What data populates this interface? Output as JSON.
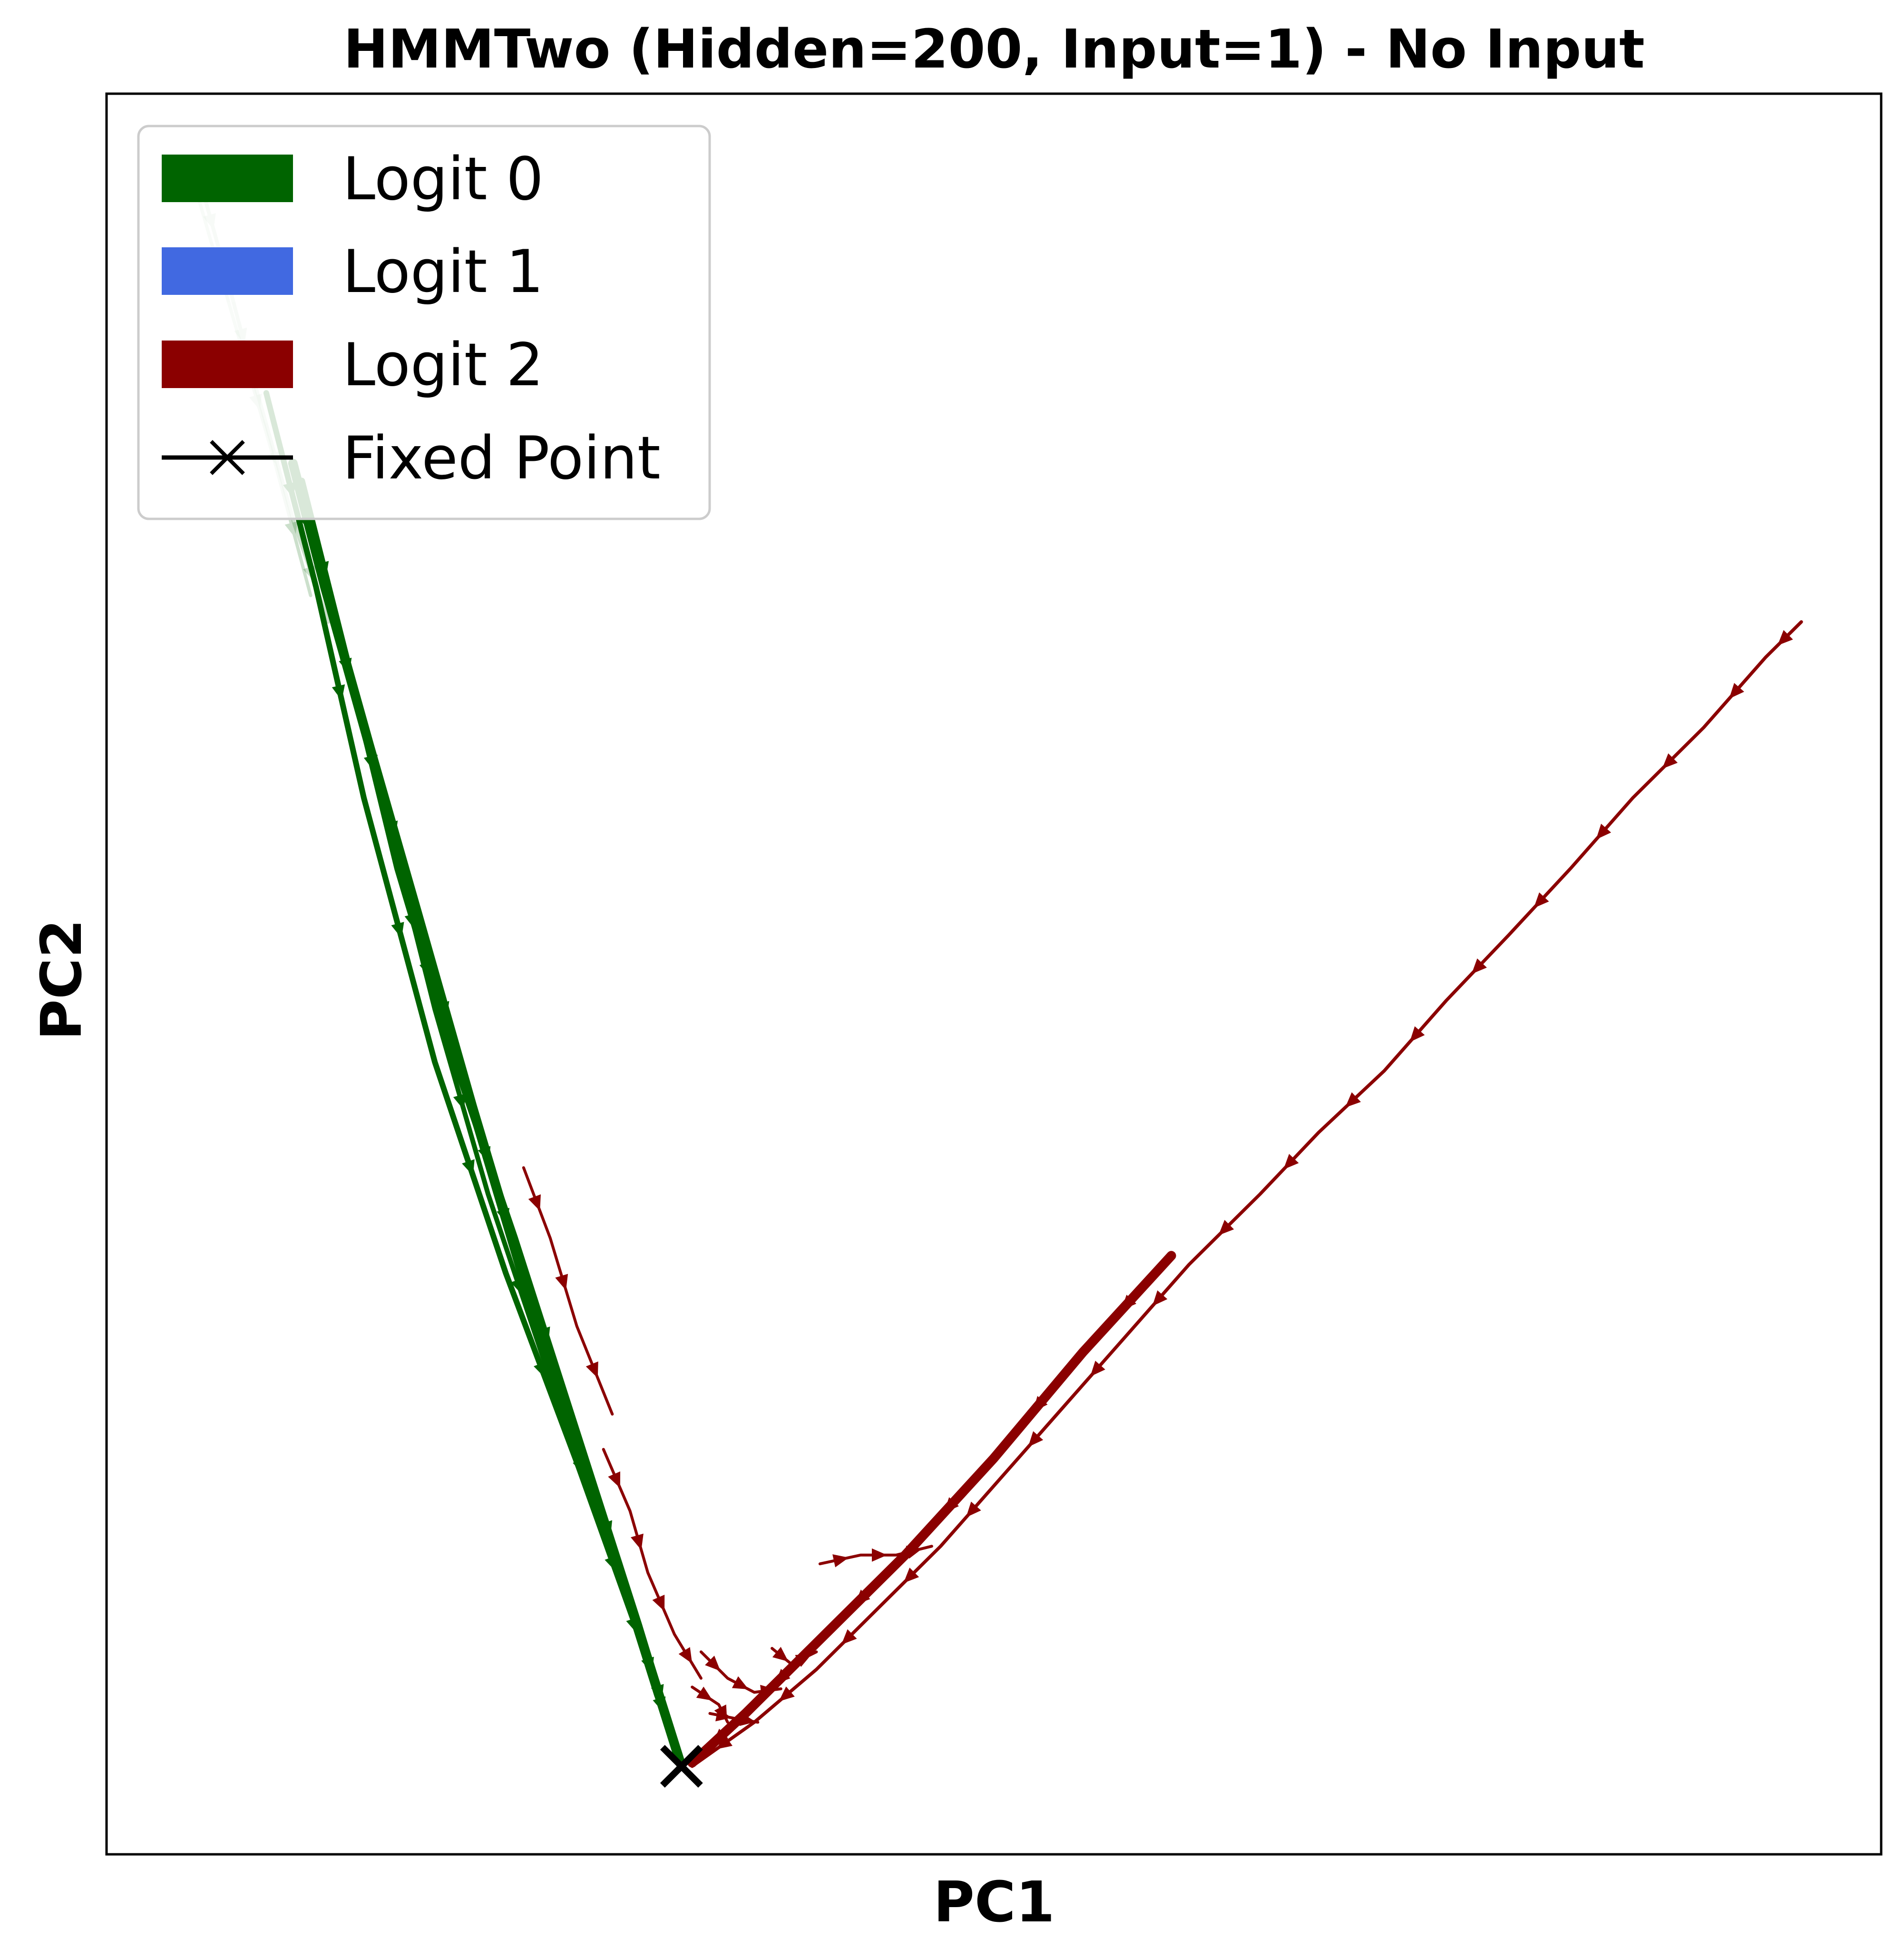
{
  "chart_data": {
    "type": "line",
    "title": "HMMTwo (Hidden=200, Input=1) - No Input",
    "xlabel": "PC1",
    "ylabel": "PC2",
    "xticks_visible": false,
    "yticks_visible": false,
    "grid": false,
    "legend_position": "upper-left",
    "xlim": [
      0,
      100
    ],
    "ylim": [
      0,
      100
    ],
    "legend": [
      {
        "label": "Logit 0",
        "color": "#006400",
        "style": "patch"
      },
      {
        "label": "Logit 1",
        "color": "#4169E1",
        "style": "patch"
      },
      {
        "label": "Logit 2",
        "color": "#8B0000",
        "style": "patch"
      },
      {
        "label": "Fixed Point",
        "color": "#000000",
        "style": "line-x"
      }
    ],
    "fixed_point": {
      "x": 32.4,
      "y": 5.0
    },
    "series": [
      {
        "logit": 0,
        "color": "#006400",
        "width": 20,
        "opacity": 1,
        "points": [
          [
            10.5,
            79.0
          ],
          [
            12.3,
            72.0
          ],
          [
            14.8,
            63.0
          ],
          [
            17.5,
            53.5
          ],
          [
            20.6,
            42.5
          ],
          [
            24.3,
            30.0
          ],
          [
            28.8,
            16.5
          ],
          [
            32.4,
            5.0
          ]
        ]
      },
      {
        "logit": 0,
        "color": "#006400",
        "width": 12,
        "opacity": 1,
        "points": [
          [
            9.0,
            83.0
          ],
          [
            11.8,
            72.0
          ],
          [
            14.5,
            60.0
          ],
          [
            18.5,
            45.0
          ],
          [
            22.5,
            33.0
          ],
          [
            26.6,
            22.0
          ],
          [
            30.5,
            11.0
          ],
          [
            32.0,
            6.0
          ]
        ]
      },
      {
        "logit": 0,
        "color": "#006400",
        "width": 14,
        "opacity": 1,
        "points": [
          [
            11.0,
            78.0
          ],
          [
            13.5,
            68.0
          ],
          [
            16.4,
            56.0
          ],
          [
            19.8,
            44.5
          ],
          [
            23.0,
            35.0
          ],
          [
            26.5,
            24.0
          ],
          [
            30.0,
            13.0
          ],
          [
            32.3,
            5.4
          ]
        ]
      },
      {
        "logit": 0,
        "color": "#006400",
        "width": 10,
        "opacity": 1,
        "points": [
          [
            14.0,
            66.0
          ],
          [
            16.0,
            58.0
          ],
          [
            18.5,
            48.0
          ],
          [
            21.5,
            37.5
          ],
          [
            25.0,
            27.0
          ],
          [
            28.5,
            17.0
          ],
          [
            31.0,
            9.0
          ]
        ]
      },
      {
        "logit": 0,
        "color": "#006400",
        "width": 8,
        "opacity": 0.2,
        "points": [
          [
            5.0,
            96.0
          ],
          [
            6.8,
            89.5
          ],
          [
            8.5,
            83.0
          ],
          [
            10.6,
            75.5
          ],
          [
            12.5,
            70.0
          ]
        ]
      },
      {
        "logit": 0,
        "color": "#006400",
        "width": 7,
        "opacity": 0.2,
        "points": [
          [
            5.2,
            94.0
          ],
          [
            7.5,
            86.0
          ],
          [
            9.5,
            79.0
          ],
          [
            11.5,
            71.5
          ]
        ]
      },
      {
        "logit": 2,
        "color": "#8B0000",
        "width": 7,
        "opacity": 1,
        "points": [
          [
            95.5,
            70.0
          ],
          [
            93.5,
            68.0
          ],
          [
            90.0,
            64.0
          ],
          [
            86.0,
            60.0
          ],
          [
            82.5,
            56.0
          ],
          [
            79.0,
            52.2
          ],
          [
            75.5,
            48.5
          ],
          [
            72.0,
            44.5
          ],
          [
            68.3,
            41.0
          ],
          [
            65.0,
            37.5
          ],
          [
            61.0,
            33.5
          ],
          [
            57.5,
            29.5
          ],
          [
            54.0,
            25.5
          ],
          [
            50.5,
            21.5
          ],
          [
            47.0,
            17.5
          ],
          [
            43.5,
            14.0
          ],
          [
            40.0,
            10.5
          ],
          [
            36.5,
            7.5
          ],
          [
            33.0,
            5.0
          ]
        ]
      },
      {
        "logit": 2,
        "color": "#8B0000",
        "width": 20,
        "opacity": 1,
        "points": [
          [
            60.0,
            34.0
          ],
          [
            55.0,
            28.5
          ],
          [
            50.0,
            22.5
          ],
          [
            45.0,
            17.0
          ],
          [
            40.0,
            12.0
          ],
          [
            36.0,
            8.0
          ],
          [
            33.0,
            5.2
          ]
        ]
      },
      {
        "logit": 2,
        "color": "#8B0000",
        "width": 6,
        "opacity": 1,
        "points": [
          [
            23.5,
            39.0
          ],
          [
            25.0,
            35.0
          ],
          [
            26.5,
            30.0
          ],
          [
            28.5,
            25.0
          ]
        ]
      },
      {
        "logit": 2,
        "color": "#8B0000",
        "width": 6,
        "opacity": 1,
        "points": [
          [
            28.0,
            23.0
          ],
          [
            29.5,
            19.5
          ],
          [
            30.5,
            16.0
          ],
          [
            32.0,
            12.5
          ],
          [
            33.5,
            10.0
          ]
        ]
      },
      {
        "logit": 2,
        "color": "#8B0000",
        "width": 6,
        "opacity": 1,
        "points": [
          [
            40.2,
            16.5
          ],
          [
            42.5,
            17.0
          ],
          [
            44.5,
            17.0
          ],
          [
            46.5,
            17.5
          ]
        ]
      },
      {
        "logit": 2,
        "color": "#8B0000",
        "width": 6,
        "opacity": 1,
        "points": [
          [
            37.5,
            11.7
          ],
          [
            38.6,
            10.8
          ],
          [
            40.0,
            11.5
          ]
        ]
      },
      {
        "logit": 2,
        "color": "#8B0000",
        "width": 6,
        "opacity": 1,
        "points": [
          [
            33.5,
            11.5
          ],
          [
            35.0,
            10.0
          ],
          [
            36.5,
            9.2
          ],
          [
            38.0,
            9.4
          ]
        ]
      },
      {
        "logit": 2,
        "color": "#8B0000",
        "width": 6,
        "opacity": 1,
        "points": [
          [
            33.0,
            9.5
          ],
          [
            34.5,
            8.5
          ],
          [
            35.0,
            7.5
          ]
        ]
      },
      {
        "logit": 2,
        "color": "#8B0000",
        "width": 6,
        "opacity": 1,
        "points": [
          [
            34.0,
            8.0
          ],
          [
            35.5,
            7.7
          ],
          [
            36.7,
            7.5
          ]
        ]
      }
    ]
  }
}
